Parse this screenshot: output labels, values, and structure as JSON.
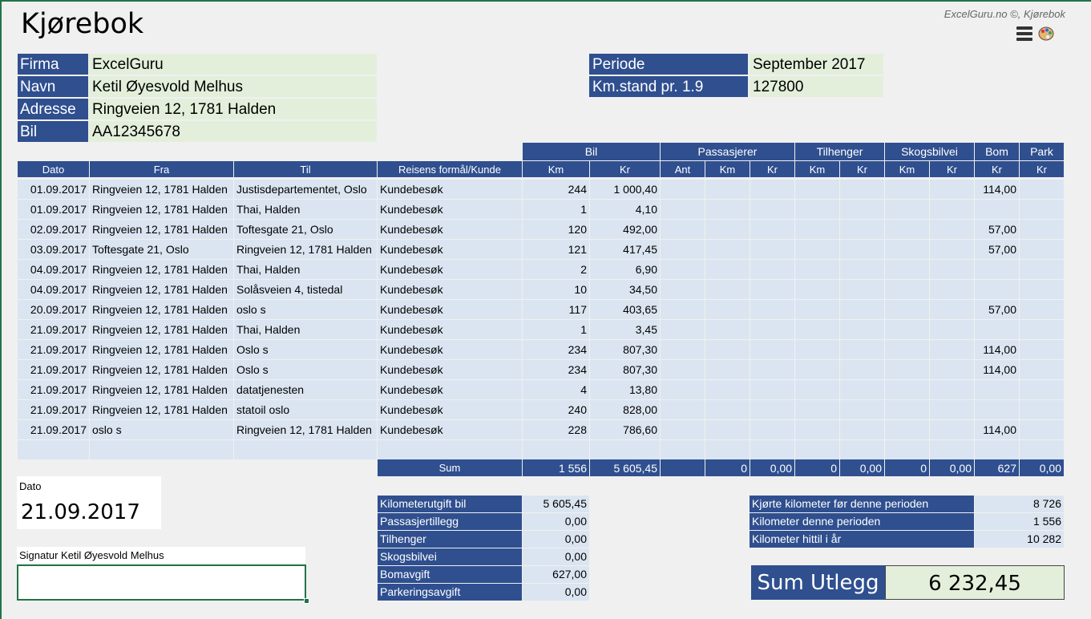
{
  "title": "Kjørebok",
  "credit": "ExcelGuru.no ©, Kjørebok",
  "info_left": [
    {
      "label": "Firma",
      "value": "ExcelGuru"
    },
    {
      "label": "Navn",
      "value": "Ketil Øyesvold Melhus"
    },
    {
      "label": "Adresse",
      "value": "Ringveien 12, 1781 Halden"
    },
    {
      "label": "Bil",
      "value": "AA12345678"
    }
  ],
  "info_right": [
    {
      "label": "Periode",
      "value": "September 2017"
    },
    {
      "label": "Km.stand pr. 1.9",
      "value": "127800"
    }
  ],
  "group_headers": {
    "bil": "Bil",
    "passasjerer": "Passasjerer",
    "tilhenger": "Tilhenger",
    "skogsbilvei": "Skogsbilvei",
    "bom": "Bom",
    "park": "Park"
  },
  "columns": [
    "Dato",
    "Fra",
    "Til",
    "Reisens formål/Kunde",
    "Km",
    "Kr",
    "Ant",
    "Km",
    "Kr",
    "Km",
    "Kr",
    "Km",
    "Kr",
    "Kr",
    "Kr"
  ],
  "rows": [
    [
      "01.09.2017",
      "Ringveien 12, 1781 Halden",
      "Justisdepartementet, Oslo",
      "Kundebesøk",
      "244",
      "1 000,40",
      "",
      "",
      "",
      "",
      "",
      "",
      "",
      "114,00",
      ""
    ],
    [
      "01.09.2017",
      "Ringveien 12, 1781 Halden",
      "Thai, Halden",
      "Kundebesøk",
      "1",
      "4,10",
      "",
      "",
      "",
      "",
      "",
      "",
      "",
      "",
      ""
    ],
    [
      "02.09.2017",
      "Ringveien 12, 1781 Halden",
      "Toftesgate 21, Oslo",
      "Kundebesøk",
      "120",
      "492,00",
      "",
      "",
      "",
      "",
      "",
      "",
      "",
      "57,00",
      ""
    ],
    [
      "03.09.2017",
      "Toftesgate 21, Oslo",
      "Ringveien 12, 1781 Halden",
      "Kundebesøk",
      "121",
      "417,45",
      "",
      "",
      "",
      "",
      "",
      "",
      "",
      "57,00",
      ""
    ],
    [
      "04.09.2017",
      "Ringveien 12, 1781 Halden",
      "Thai, Halden",
      "Kundebesøk",
      "2",
      "6,90",
      "",
      "",
      "",
      "",
      "",
      "",
      "",
      "",
      ""
    ],
    [
      "04.09.2017",
      "Ringveien 12, 1781 Halden",
      "Solåsveien 4, tistedal",
      "Kundebesøk",
      "10",
      "34,50",
      "",
      "",
      "",
      "",
      "",
      "",
      "",
      "",
      ""
    ],
    [
      "20.09.2017",
      "Ringveien 12, 1781 Halden",
      "oslo s",
      "Kundebesøk",
      "117",
      "403,65",
      "",
      "",
      "",
      "",
      "",
      "",
      "",
      "57,00",
      ""
    ],
    [
      "21.09.2017",
      "Ringveien 12, 1781 Halden",
      "Thai, Halden",
      "Kundebesøk",
      "1",
      "3,45",
      "",
      "",
      "",
      "",
      "",
      "",
      "",
      "",
      ""
    ],
    [
      "21.09.2017",
      "Ringveien 12, 1781 Halden",
      "Oslo s",
      "Kundebesøk",
      "234",
      "807,30",
      "",
      "",
      "",
      "",
      "",
      "",
      "",
      "114,00",
      ""
    ],
    [
      "21.09.2017",
      "Ringveien 12, 1781 Halden",
      "Oslo s",
      "Kundebesøk",
      "234",
      "807,30",
      "",
      "",
      "",
      "",
      "",
      "",
      "",
      "114,00",
      ""
    ],
    [
      "21.09.2017",
      "Ringveien 12, 1781 Halden",
      "datatjenesten",
      "Kundebesøk",
      "4",
      "13,80",
      "",
      "",
      "",
      "",
      "",
      "",
      "",
      "",
      ""
    ],
    [
      "21.09.2017",
      "Ringveien 12, 1781 Halden",
      "statoil oslo",
      "Kundebesøk",
      "240",
      "828,00",
      "",
      "",
      "",
      "",
      "",
      "",
      "",
      "",
      ""
    ],
    [
      "21.09.2017",
      "oslo s",
      "Ringveien 12, 1781 Halden",
      "Kundebesøk",
      "228",
      "786,60",
      "",
      "",
      "",
      "",
      "",
      "",
      "",
      "114,00",
      ""
    ],
    [
      "",
      "",
      "",
      "",
      "",
      "",
      "",
      "",
      "",
      "",
      "",
      "",
      "",
      "",
      ""
    ]
  ],
  "sum_row": {
    "label": "Sum",
    "values": [
      "1 556",
      "5 605,45",
      "",
      "0",
      "0,00",
      "0",
      "0,00",
      "0",
      "0,00",
      "627",
      "0,00"
    ]
  },
  "dato_label": "Dato",
  "dato_value": "21.09.2017",
  "signature_label": "Signatur Ketil Øyesvold Melhus",
  "costs": [
    {
      "label": "Kilometerutgift bil",
      "value": "5 605,45"
    },
    {
      "label": "Passasjertillegg",
      "value": "0,00"
    },
    {
      "label": "Tilhenger",
      "value": "0,00"
    },
    {
      "label": "Skogsbilvei",
      "value": "0,00"
    },
    {
      "label": "Bomavgift",
      "value": "627,00"
    },
    {
      "label": "Parkeringsavgift",
      "value": "0,00"
    }
  ],
  "km_summary": [
    {
      "label": "Kjørte kilometer før denne perioden",
      "value": "8 726"
    },
    {
      "label": "Kilometer denne perioden",
      "value": "1 556"
    },
    {
      "label": "Kilometer hittil i år",
      "value": "10 282"
    }
  ],
  "total_label": "Sum Utlegg",
  "total_value": "6 232,45",
  "colors": {
    "header": "#2f4f8f",
    "green": "#e3efdb",
    "light_blue": "#dbe5f1"
  }
}
